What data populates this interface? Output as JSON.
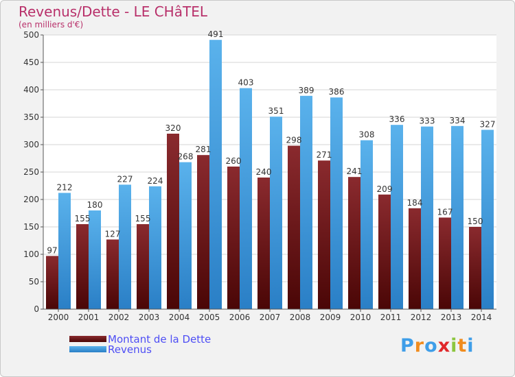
{
  "header": {
    "title": "Revenus/Dette - LE CHâTEL",
    "subtitle": "(en milliers d'€)"
  },
  "colors": {
    "dette": "#7a1c20",
    "revenus": "#49a6e6",
    "title": "#b8306a",
    "legend_text": "#4d4df5"
  },
  "chart_data": {
    "type": "bar",
    "title": "Revenus/Dette - LE CHâTEL",
    "ylabel": "(en milliers d'€)",
    "categories": [
      "2000",
      "2001",
      "2002",
      "2003",
      "2004",
      "2005",
      "2006",
      "2007",
      "2008",
      "2009",
      "2010",
      "2011",
      "2012",
      "2013",
      "2014"
    ],
    "series": [
      {
        "name": "Montant de la Dette",
        "values": [
          97,
          155,
          127,
          155,
          320,
          281,
          260,
          240,
          298,
          271,
          241,
          209,
          184,
          167,
          150
        ]
      },
      {
        "name": "Revenus",
        "values": [
          212,
          180,
          227,
          224,
          268,
          491,
          403,
          351,
          389,
          386,
          308,
          336,
          333,
          334,
          327
        ]
      }
    ],
    "ylim": [
      0,
      500
    ],
    "yticks": [
      0,
      50,
      100,
      150,
      200,
      250,
      300,
      350,
      400,
      450,
      500
    ],
    "grid": true,
    "legend_position": "bottom-left"
  },
  "legend": {
    "items": [
      {
        "label": "Montant de la Dette",
        "color": "#7a1c20"
      },
      {
        "label": "Revenus",
        "color": "#49a6e6"
      }
    ]
  },
  "logo": {
    "letters": [
      "P",
      "r",
      "o",
      "x",
      "i",
      "t",
      "i"
    ],
    "colors": [
      "#3f9ee8",
      "#f08c1e",
      "#3f9ee8",
      "#e0282a",
      "#8cc63f",
      "#f08c1e",
      "#3f9ee8"
    ]
  }
}
